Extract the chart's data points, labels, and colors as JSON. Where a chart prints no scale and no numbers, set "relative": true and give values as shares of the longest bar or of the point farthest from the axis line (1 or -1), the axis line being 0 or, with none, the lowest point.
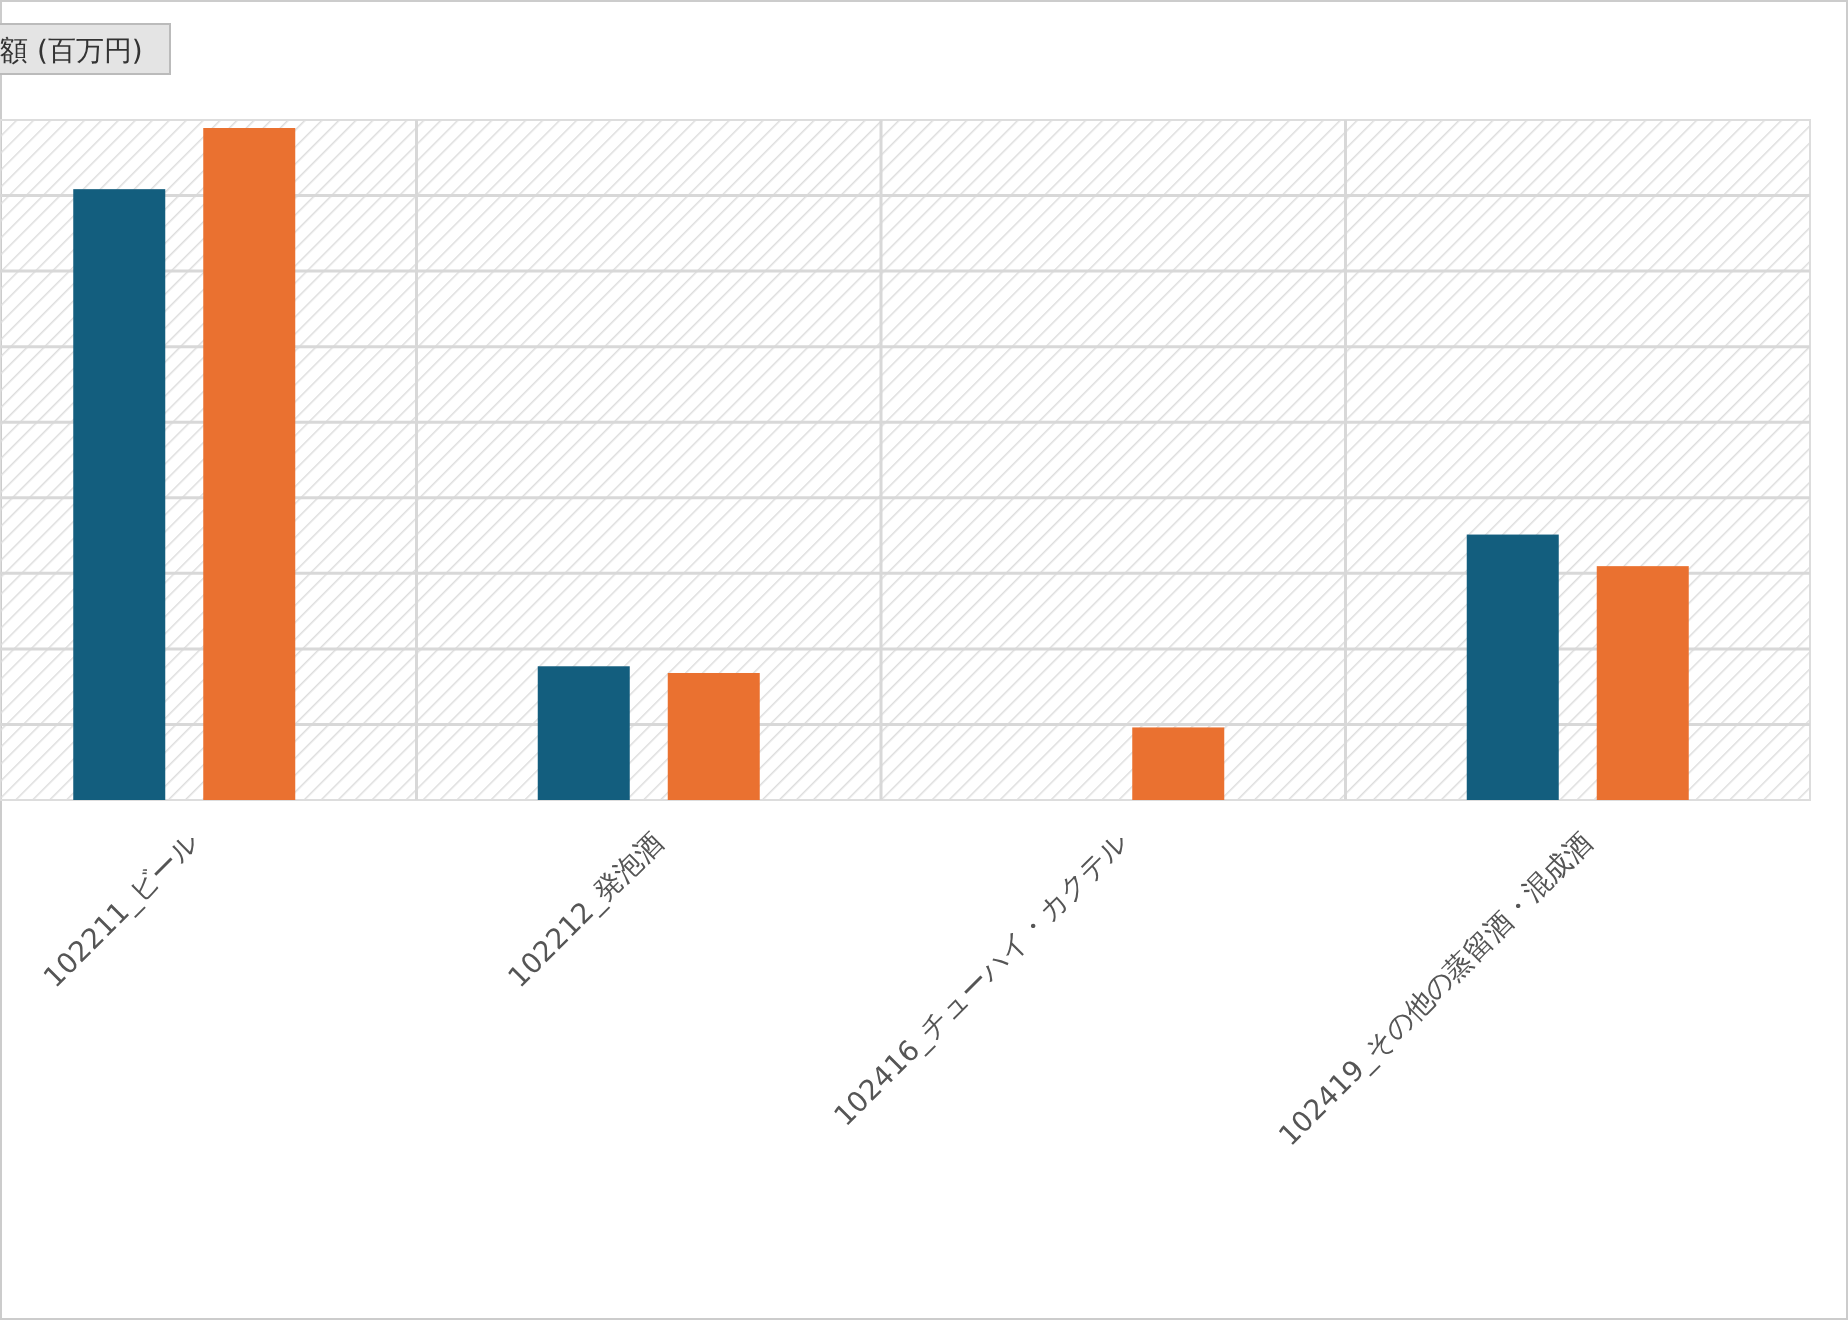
{
  "chart_data": {
    "type": "bar",
    "title": "額 (百万円)",
    "relative": true,
    "grid": true,
    "categories": [
      "102211_ビール",
      "102212_発泡酒",
      "102416_チューハイ・カクテル",
      "102419_その他の蒸留酒・混成酒"
    ],
    "series": [
      {
        "color": "#135e7e",
        "values": [
          0.909,
          0.199,
          null,
          0.395
        ]
      },
      {
        "color": "#ea7130",
        "values": [
          1,
          0.189,
          0.108,
          0.348
        ]
      }
    ]
  }
}
